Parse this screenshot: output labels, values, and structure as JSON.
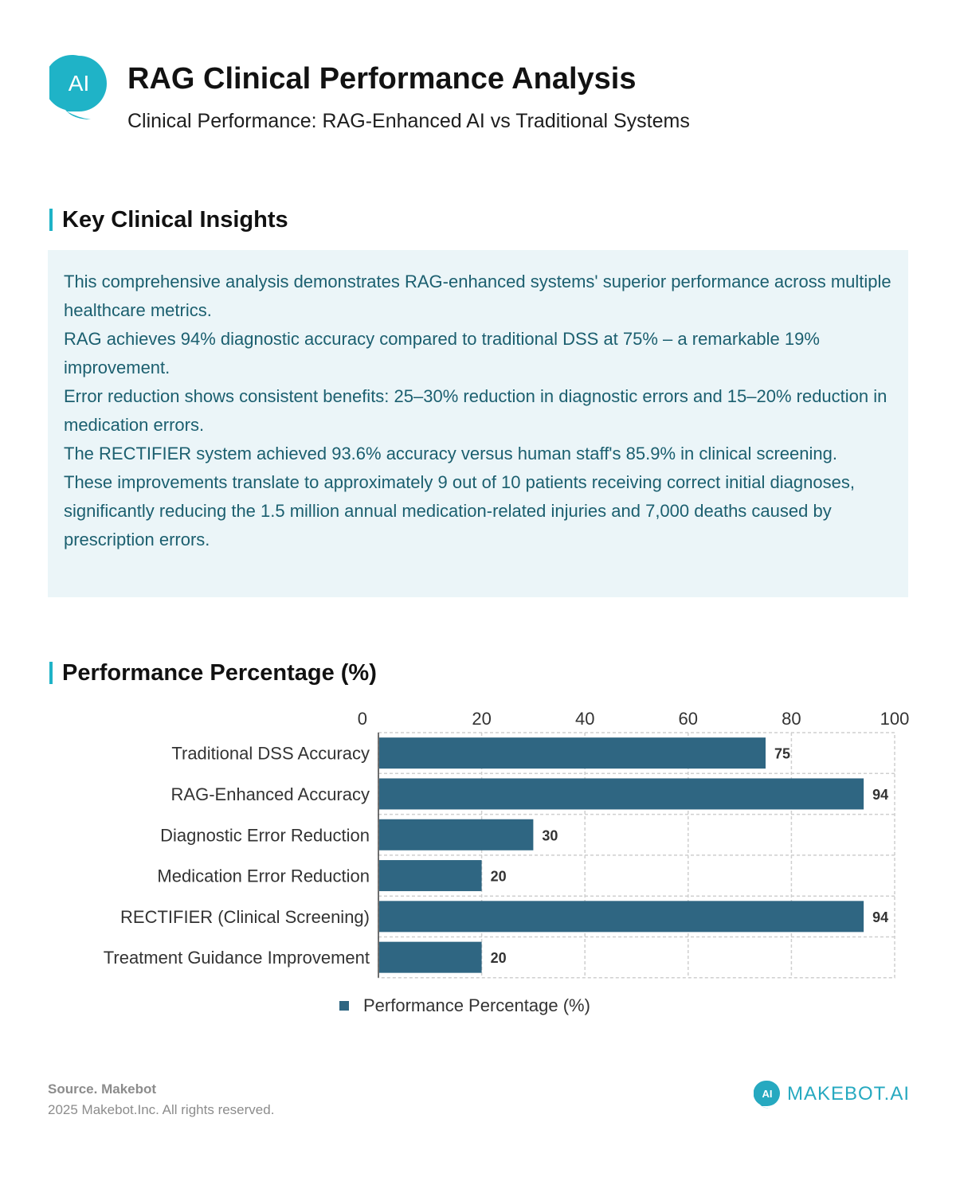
{
  "header": {
    "logo_icon": "ai-speech-bubble-icon",
    "logo_text": "AI",
    "title": "RAG Clinical Performance Analysis",
    "subtitle": "Clinical Performance: RAG-Enhanced AI vs Traditional Systems"
  },
  "insights": {
    "heading": "Key Clinical Insights",
    "paragraphs": [
      "This comprehensive analysis demonstrates RAG-enhanced systems' superior performance across multiple healthcare metrics.",
      "RAG achieves 94% diagnostic accuracy compared to traditional DSS at 75% – a remarkable 19% improvement.",
      "Error reduction shows consistent benefits: 25–30% reduction in diagnostic errors and 15–20% reduction in medication errors.",
      "The RECTIFIER system achieved 93.6% accuracy versus human staff's 85.9% in clinical screening.",
      "These improvements translate to approximately 9 out of 10 patients receiving correct initial diagnoses, significantly reducing the 1.5 million annual medication-related injuries and 7,000 deaths caused by prescription errors."
    ]
  },
  "chart_section": {
    "heading": "Performance Percentage (%)"
  },
  "chart_data": {
    "type": "bar",
    "orientation": "horizontal",
    "categories": [
      "Traditional DSS Accuracy",
      "RAG-Enhanced Accuracy",
      "Diagnostic Error Reduction",
      "Medication Error Reduction",
      "RECTIFIER (Clinical Screening)",
      "Treatment Guidance Improvement"
    ],
    "series": [
      {
        "name": "Performance Percentage (%)",
        "values": [
          75,
          94,
          30,
          20,
          94,
          20
        ]
      }
    ],
    "xlim": [
      0,
      100
    ],
    "x_ticks": [
      0,
      20,
      40,
      60,
      80,
      100
    ],
    "x_axis_position": "top",
    "grid": true,
    "legend_position": "bottom-center",
    "bar_color": "#2f6682",
    "title": "",
    "xlabel": "",
    "ylabel": ""
  },
  "footer": {
    "source": "Source. Makebot",
    "copyright": "2025 Makebot.Inc. All rights reserved.",
    "brand_icon": "makebot-ai-logo-icon",
    "brand_icon_text": "AI",
    "brand_name": "MAKEBOT.AI"
  },
  "colors": {
    "accent": "#1fb3c7",
    "bar": "#2f6682",
    "insight_text": "#1b5f6f",
    "insight_bg": "#ebf5f8"
  }
}
